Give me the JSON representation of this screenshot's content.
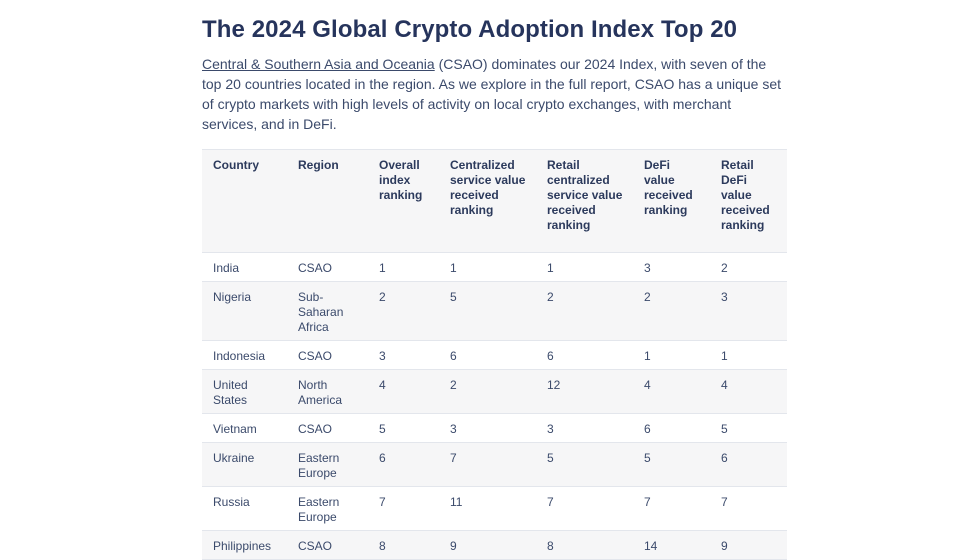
{
  "title": "The 2024 Global Crypto Adoption Index Top 20",
  "intro": {
    "link_text": "Central & Southern Asia and Oceania",
    "rest_text": " (CSAO) dominates our 2024 Index, with seven of the top 20 countries located in the region. As we explore in the full report, CSAO has a unique set of crypto markets with high levels of activity on local crypto exchanges, with merchant services, and in DeFi."
  },
  "table": {
    "headers": [
      "Country",
      "Region",
      "Overall index ranking",
      "Centralized service value received ranking",
      "Retail centralized service value received ranking",
      "DeFi value received ranking",
      "Retail DeFi value received ranking"
    ],
    "rows": [
      [
        "India",
        "CSAO",
        "1",
        "1",
        "1",
        "3",
        "2"
      ],
      [
        "Nigeria",
        "Sub-Saharan Africa",
        "2",
        "5",
        "2",
        "2",
        "3"
      ],
      [
        "Indonesia",
        "CSAO",
        "3",
        "6",
        "6",
        "1",
        "1"
      ],
      [
        "United States",
        "North America",
        "4",
        "2",
        "12",
        "4",
        "4"
      ],
      [
        "Vietnam",
        "CSAO",
        "5",
        "3",
        "3",
        "6",
        "5"
      ],
      [
        "Ukraine",
        "Eastern Europe",
        "6",
        "7",
        "5",
        "5",
        "6"
      ],
      [
        "Russia",
        "Eastern Europe",
        "7",
        "11",
        "7",
        "7",
        "7"
      ],
      [
        "Philippines",
        "CSAO",
        "8",
        "9",
        "8",
        "14",
        "9"
      ]
    ]
  }
}
